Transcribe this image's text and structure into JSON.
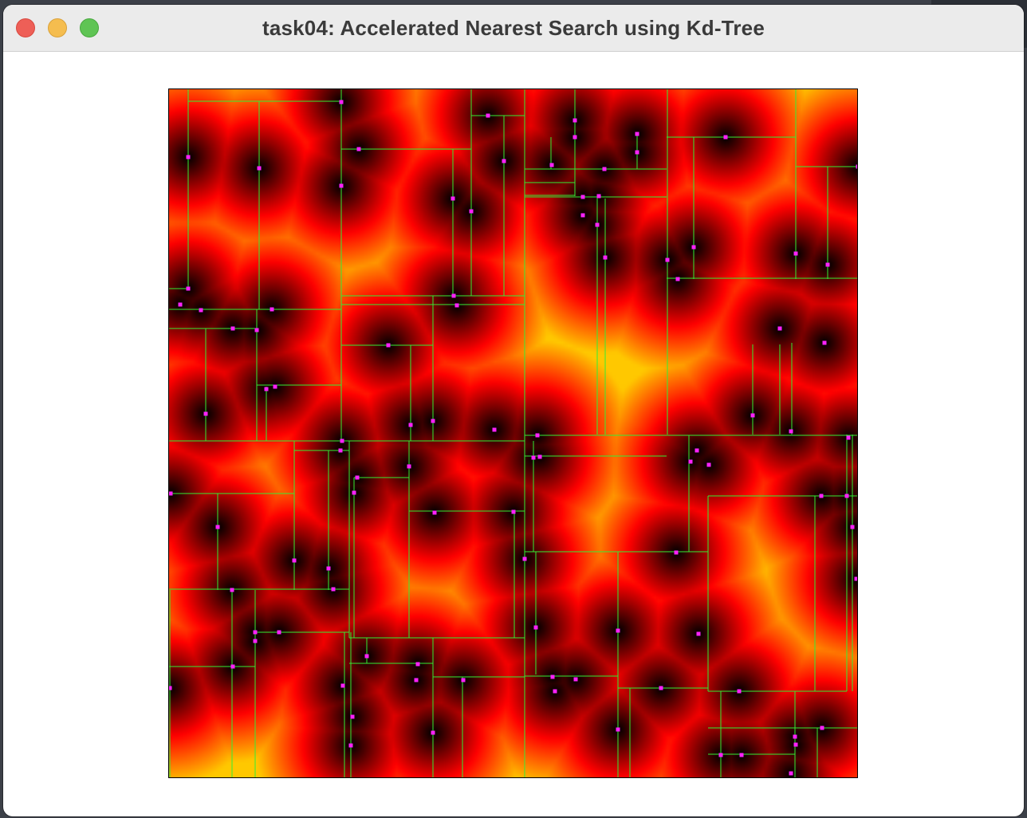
{
  "window": {
    "title": "task04: Accelerated Nearest Search using Kd-Tree"
  },
  "colors": {
    "split_line": "#33ee33",
    "point": "#ff22ff",
    "heat_low": "#000000",
    "heat_mid": "#ff0000",
    "heat_high": "#ffaa00"
  },
  "icons": [
    "close-icon",
    "minimize-icon",
    "maximize-icon"
  ]
}
